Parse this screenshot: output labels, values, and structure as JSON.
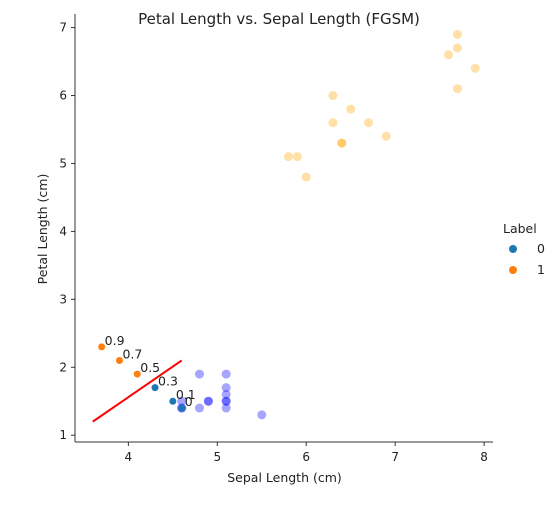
{
  "chart_data": {
    "type": "scatter",
    "title": "Petal Length vs. Sepal Length (FGSM)",
    "xlabel": "Sepal Length (cm)",
    "ylabel": "Petal Length (cm)",
    "xlim": [
      3.4,
      8.1
    ],
    "ylim": [
      0.9,
      7.2
    ],
    "xticks": [
      4,
      5,
      6,
      7,
      8
    ],
    "yticks": [
      1,
      2,
      3,
      4,
      5,
      6,
      7
    ],
    "grid": false,
    "legend": {
      "title": "Label",
      "placement": "right",
      "entries": [
        {
          "label": "0",
          "color": "#1f77b4"
        },
        {
          "label": "1",
          "color": "#ff7f0e"
        }
      ]
    },
    "series": [
      {
        "label": "background-class-0",
        "color": "#0000ff",
        "alpha": 0.35,
        "points": [
          [
            4.6,
            1.4
          ],
          [
            4.6,
            1.5
          ],
          [
            4.8,
            1.4
          ],
          [
            4.8,
            1.9
          ],
          [
            4.9,
            1.5
          ],
          [
            4.9,
            1.5
          ],
          [
            5.1,
            1.4
          ],
          [
            5.1,
            1.5
          ],
          [
            5.1,
            1.5
          ],
          [
            5.1,
            1.6
          ],
          [
            5.1,
            1.7
          ],
          [
            5.1,
            1.9
          ],
          [
            5.5,
            1.3
          ],
          [
            4.6,
            1.4
          ]
        ]
      },
      {
        "label": "background-class-1",
        "color": "#ffa500",
        "alpha": 0.35,
        "points": [
          [
            5.8,
            5.1
          ],
          [
            5.9,
            5.1
          ],
          [
            6.0,
            4.8
          ],
          [
            6.3,
            5.6
          ],
          [
            6.3,
            6.0
          ],
          [
            6.4,
            5.3
          ],
          [
            6.4,
            5.3
          ],
          [
            6.5,
            5.8
          ],
          [
            6.7,
            5.6
          ],
          [
            6.9,
            5.4
          ],
          [
            7.6,
            6.6
          ],
          [
            7.7,
            6.1
          ],
          [
            7.7,
            6.7
          ],
          [
            7.7,
            6.9
          ],
          [
            7.9,
            6.4
          ]
        ]
      },
      {
        "label": "trajectory",
        "points": [
          {
            "x": 4.6,
            "y": 1.4,
            "class": 0,
            "annotation": "0"
          },
          {
            "x": 4.5,
            "y": 1.5,
            "class": 0,
            "annotation": "0.1"
          },
          {
            "x": 4.3,
            "y": 1.7,
            "class": 0,
            "annotation": "0.3"
          },
          {
            "x": 4.1,
            "y": 1.9,
            "class": 1,
            "annotation": "0.5"
          },
          {
            "x": 3.9,
            "y": 2.1,
            "class": 1,
            "annotation": "0.7"
          },
          {
            "x": 3.7,
            "y": 2.3,
            "class": 1,
            "annotation": "0.9"
          }
        ]
      }
    ],
    "line": {
      "color": "#ff0000",
      "points": [
        [
          3.6,
          1.2
        ],
        [
          4.6,
          2.1
        ]
      ]
    },
    "class_colors": {
      "0": "#1f77b4",
      "1": "#ff7f0e"
    }
  }
}
